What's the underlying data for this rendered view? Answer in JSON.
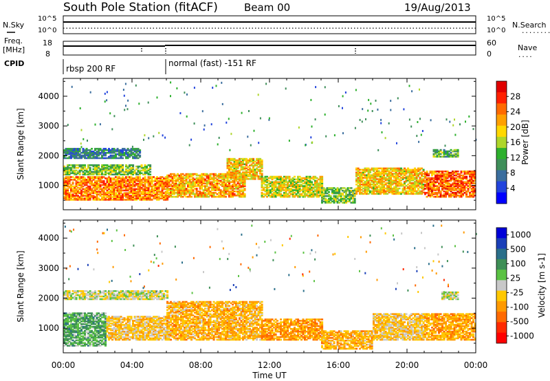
{
  "header": {
    "station": "South Pole Station (fitACF)",
    "beam": "Beam 00",
    "date": "19/Aug/2013"
  },
  "strip": {
    "nsky_label": "N.Sky",
    "nsearch_label": "N.Search",
    "nsearch_dots": "........",
    "freq_label_1": "Freq.",
    "freq_label_2": "[MHz]",
    "nave_label": "Nave",
    "nave_dots": "....",
    "cpid_label": "CPID",
    "left_ticks_top": [
      "10^5",
      "10^0"
    ],
    "right_ticks_top": [
      "10^5",
      "10^0"
    ],
    "left_ticks_freq": [
      "18",
      "8"
    ],
    "right_ticks_freq": [
      "60",
      "0"
    ],
    "cpid_segments": [
      {
        "label": "rbsp 200 RF",
        "start_hour": 0
      },
      {
        "label": "normal (fast) -151 RF",
        "start_hour": 6
      }
    ]
  },
  "colors": {
    "power": [
      "#0000ff",
      "#2244dd",
      "#3b6e9e",
      "#3f8f5a",
      "#2db02d",
      "#aed62a",
      "#ffd800",
      "#ffa000",
      "#ff6a00",
      "#ff2000",
      "#e00000"
    ],
    "velocity": [
      "#0000d8",
      "#1a3fb8",
      "#2a6f8a",
      "#3e8f56",
      "#5bc243",
      "#c8c8c8",
      "#ffc800",
      "#ff9a00",
      "#ff6a00",
      "#ff2a00",
      "#ff0000"
    ]
  },
  "chart_data": [
    {
      "type": "heatmap",
      "name": "power",
      "ylabel": "Slant Range [km]",
      "yticks": [
        "1000",
        "2000",
        "3000",
        "4000"
      ],
      "ylim": [
        180,
        4600
      ],
      "xlim": [
        0,
        24
      ],
      "colorbar_label": "Power [dB]",
      "colorbar_ticks": [
        "4",
        "8",
        "12",
        "16",
        "20",
        "24",
        "28"
      ],
      "colorbar_range": [
        0,
        32
      ],
      "bands": [
        {
          "h0": 0,
          "h1": 4.5,
          "r0": 1900,
          "r1": 2250,
          "value": 8
        },
        {
          "h0": 0,
          "h1": 5,
          "r0": 1350,
          "r1": 1700,
          "value": 14
        },
        {
          "h0": 0,
          "h1": 6,
          "r0": 500,
          "r1": 1300,
          "value": 24
        },
        {
          "h0": 6,
          "h1": 10.5,
          "r0": 600,
          "r1": 1400,
          "value": 22
        },
        {
          "h0": 9.5,
          "h1": 11.5,
          "r0": 1200,
          "r1": 1900,
          "value": 20
        },
        {
          "h0": 11.5,
          "h1": 15,
          "r0": 600,
          "r1": 1300,
          "value": 18
        },
        {
          "h0": 15,
          "h1": 17,
          "r0": 400,
          "r1": 900,
          "value": 14
        },
        {
          "h0": 17,
          "h1": 21,
          "r0": 700,
          "r1": 1600,
          "value": 20
        },
        {
          "h0": 21,
          "h1": 24,
          "r0": 600,
          "r1": 1500,
          "value": 26
        },
        {
          "h0": 21.5,
          "h1": 23,
          "r0": 1950,
          "r1": 2200,
          "value": 12
        }
      ]
    },
    {
      "type": "heatmap",
      "name": "velocity",
      "ylabel": "Slant Range [km]",
      "xlabel": "Time UT",
      "xticks": [
        "00:00",
        "04:00",
        "08:00",
        "12:00",
        "16:00",
        "20:00",
        "00:00"
      ],
      "yticks": [
        "1000",
        "2000",
        "3000",
        "4000"
      ],
      "ylim": [
        180,
        4600
      ],
      "xlim": [
        0,
        24
      ],
      "colorbar_label": "Velocity [m s-1]",
      "colorbar_ticks": [
        "1000",
        "500",
        "100",
        "25",
        "-25",
        "-100",
        "-500",
        "-1000"
      ],
      "bands": [
        {
          "h0": 0,
          "h1": 6,
          "r0": 1950,
          "r1": 2250,
          "value": 0
        },
        {
          "h0": 0,
          "h1": 2.5,
          "r0": 400,
          "r1": 1500,
          "value": 300
        },
        {
          "h0": 2.5,
          "h1": 6,
          "r0": 600,
          "r1": 1400,
          "value": -200
        },
        {
          "h0": 6,
          "h1": 11.5,
          "r0": 600,
          "r1": 1900,
          "value": -300
        },
        {
          "h0": 11.5,
          "h1": 15,
          "r0": 600,
          "r1": 1300,
          "value": -400
        },
        {
          "h0": 15,
          "h1": 18,
          "r0": 300,
          "r1": 900,
          "value": -300
        },
        {
          "h0": 18,
          "h1": 21,
          "r0": 600,
          "r1": 1500,
          "value": -200
        },
        {
          "h0": 21,
          "h1": 24,
          "r0": 600,
          "r1": 1500,
          "value": -350
        },
        {
          "h0": 22,
          "h1": 23,
          "r0": 1950,
          "r1": 2200,
          "value": 0
        }
      ]
    }
  ]
}
